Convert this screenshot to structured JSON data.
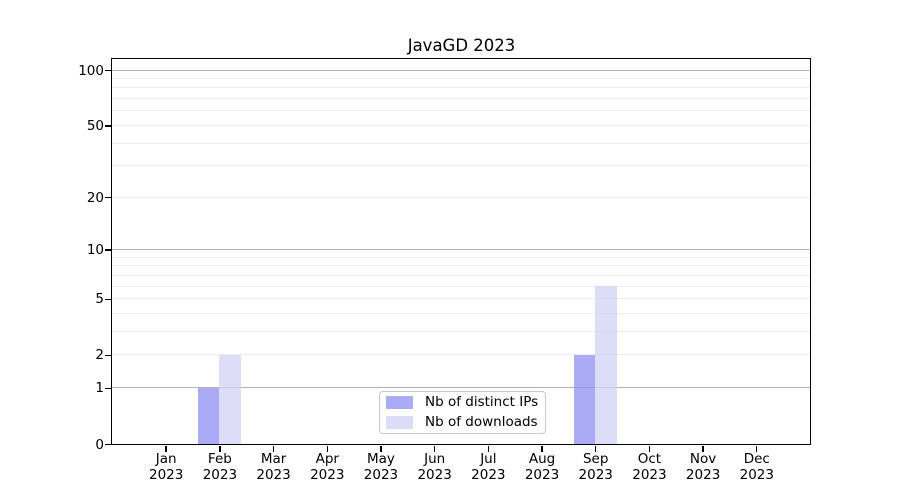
{
  "figure": {
    "background": "#ffffff"
  },
  "chart_data": {
    "type": "bar",
    "title": "JavaGD 2023",
    "categories": [
      {
        "month": "Jan",
        "year": "2023"
      },
      {
        "month": "Feb",
        "year": "2023"
      },
      {
        "month": "Mar",
        "year": "2023"
      },
      {
        "month": "Apr",
        "year": "2023"
      },
      {
        "month": "May",
        "year": "2023"
      },
      {
        "month": "Jun",
        "year": "2023"
      },
      {
        "month": "Jul",
        "year": "2023"
      },
      {
        "month": "Aug",
        "year": "2023"
      },
      {
        "month": "Sep",
        "year": "2023"
      },
      {
        "month": "Oct",
        "year": "2023"
      },
      {
        "month": "Nov",
        "year": "2023"
      },
      {
        "month": "Dec",
        "year": "2023"
      }
    ],
    "series": [
      {
        "name": "Nb of distinct IPs",
        "key": "distinct-ips",
        "swatch_color": "#aaaaf5",
        "fill_rgba": "rgba(143,143,242,0.75)",
        "values": [
          0,
          1,
          0,
          0,
          0,
          0,
          0,
          0,
          2,
          0,
          0,
          0
        ]
      },
      {
        "name": "Nb of downloads",
        "key": "downloads",
        "swatch_color": "#dcdcf7",
        "fill_rgba": "rgba(209,209,244,0.75)",
        "values": [
          0,
          2,
          0,
          0,
          0,
          0,
          0,
          0,
          6,
          0,
          0,
          0
        ]
      }
    ],
    "xlabel": "",
    "ylabel": "",
    "y_scale": "log1p",
    "ylim": [
      0,
      115
    ],
    "y_ticks_labeled": [
      0,
      1,
      2,
      5,
      10,
      20,
      50,
      100
    ],
    "y_gridlines_major": [
      1,
      10,
      100
    ],
    "y_gridlines_minor": [
      2,
      3,
      4,
      5,
      6,
      7,
      8,
      9,
      20,
      30,
      40,
      50,
      60,
      70,
      80,
      90
    ],
    "grid": "horizontal",
    "legend_position": "lower center",
    "colors": {
      "axis": "#000000",
      "major_grid": "#b3b3b3",
      "minor_grid": "#ececec",
      "legend_border": "#c8c8c8",
      "text": "#000000"
    }
  }
}
